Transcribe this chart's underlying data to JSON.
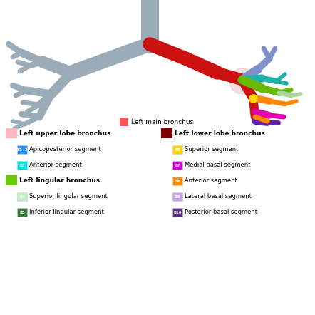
{
  "background_color": "#ffffff",
  "legend_main": {
    "label": "Left main bronchus",
    "color": "#ff5555"
  },
  "legend_left_col": [
    {
      "label": "Left upper lobe bronchus",
      "color": "#ffb6c1",
      "box_label": null,
      "indent": false
    },
    {
      "label": "Apicoposterior segment",
      "color": "#1e90ff",
      "box_label": "B1+2",
      "indent": true
    },
    {
      "label": "Anterior segment",
      "color": "#00e0e0",
      "box_label": "B3",
      "indent": true
    },
    {
      "label": "Left lingular bronchus",
      "color": "#66cc00",
      "box_label": null,
      "indent": false
    },
    {
      "label": "Superior lingular segment",
      "color": "#c8f0c8",
      "box_label": "B4",
      "indent": true
    },
    {
      "label": "Inferior lingular segment",
      "color": "#2e7d32",
      "box_label": "B5",
      "indent": true
    }
  ],
  "legend_right_col": [
    {
      "label": "Left lower lobe bronchus",
      "color": "#7b0000",
      "box_label": null,
      "indent": false
    },
    {
      "label": "Superior segment",
      "color": "#ffd700",
      "box_label": "B6",
      "indent": true
    },
    {
      "label": "Medial basal segment",
      "color": "#cc00cc",
      "box_label": "B7",
      "indent": true
    },
    {
      "label": "Anterior segment",
      "color": "#ff8c00",
      "box_label": "B8",
      "indent": true
    },
    {
      "label": "Lateral basal segment",
      "color": "#c8a0e8",
      "box_label": "B9",
      "indent": true
    },
    {
      "label": "Posterior basal segment",
      "color": "#5c2d8c",
      "box_label": "B10",
      "indent": true
    }
  ],
  "tree": {
    "gray": "#9aacb8",
    "red": "#cc1111",
    "teal": "#20b2aa",
    "blue_periwinkle": "#8090c8",
    "green": "#66bb00",
    "light_green": "#a8d8a0",
    "yellow": "#ffd700",
    "orange": "#ff8800",
    "magenta": "#dd00aa",
    "purple": "#6622aa",
    "pink_blur": "#e8c0c0"
  }
}
